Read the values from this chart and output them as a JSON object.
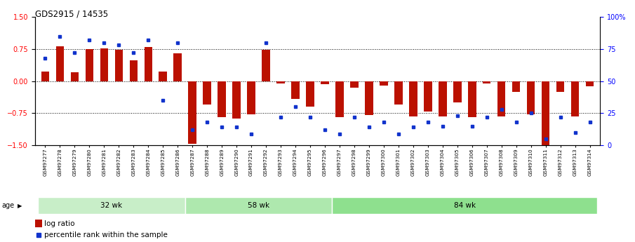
{
  "title": "GDS2915 / 14535",
  "samples": [
    "GSM97277",
    "GSM97278",
    "GSM97279",
    "GSM97280",
    "GSM97281",
    "GSM97282",
    "GSM97283",
    "GSM97284",
    "GSM97285",
    "GSM97286",
    "GSM97287",
    "GSM97288",
    "GSM97289",
    "GSM97290",
    "GSM97291",
    "GSM97292",
    "GSM97293",
    "GSM97294",
    "GSM97295",
    "GSM97296",
    "GSM97297",
    "GSM97298",
    "GSM97299",
    "GSM97300",
    "GSM97301",
    "GSM97302",
    "GSM97303",
    "GSM97304",
    "GSM97305",
    "GSM97306",
    "GSM97307",
    "GSM97308",
    "GSM97309",
    "GSM97310",
    "GSM97311",
    "GSM97312",
    "GSM97313",
    "GSM97314"
  ],
  "log_ratio": [
    0.22,
    0.82,
    0.2,
    0.75,
    0.77,
    0.73,
    0.48,
    0.79,
    0.22,
    0.65,
    -1.47,
    -0.55,
    -0.85,
    -0.87,
    -0.77,
    0.73,
    -0.05,
    -0.42,
    -0.6,
    -0.08,
    -0.85,
    -0.15,
    -0.8,
    -0.1,
    -0.55,
    -0.82,
    -0.72,
    -0.82,
    -0.5,
    -0.85,
    -0.05,
    -0.82,
    -0.25,
    -0.78,
    -1.52,
    -0.26,
    -0.82,
    -0.12
  ],
  "percentile": [
    68,
    85,
    72,
    82,
    80,
    78,
    72,
    82,
    35,
    80,
    12,
    18,
    14,
    14,
    9,
    80,
    22,
    30,
    22,
    12,
    9,
    22,
    14,
    18,
    9,
    14,
    18,
    15,
    23,
    15,
    22,
    28,
    18,
    25,
    5,
    22,
    10,
    18
  ],
  "groups": [
    {
      "label": "32 wk",
      "start": 0,
      "end": 10
    },
    {
      "label": "58 wk",
      "start": 10,
      "end": 20
    },
    {
      "label": "84 wk",
      "start": 20,
      "end": 38
    }
  ],
  "group_colors": [
    "#c8eec8",
    "#aee8ae",
    "#8ee08e"
  ],
  "bar_color": "#BB1100",
  "dot_color": "#1133CC",
  "ylim": [
    -1.5,
    1.5
  ],
  "yticks_left": [
    -1.5,
    -0.75,
    0.0,
    0.75,
    1.5
  ],
  "yticks_right_vals": [
    0,
    25,
    50,
    75,
    100
  ],
  "yticks_right_labels": [
    "0",
    "25",
    "50",
    "75",
    "100%"
  ],
  "hlines": [
    -0.75,
    0.0,
    0.75
  ],
  "legend_log_label": "log ratio",
  "legend_pct_label": "percentile rank within the sample",
  "age_label": "age"
}
